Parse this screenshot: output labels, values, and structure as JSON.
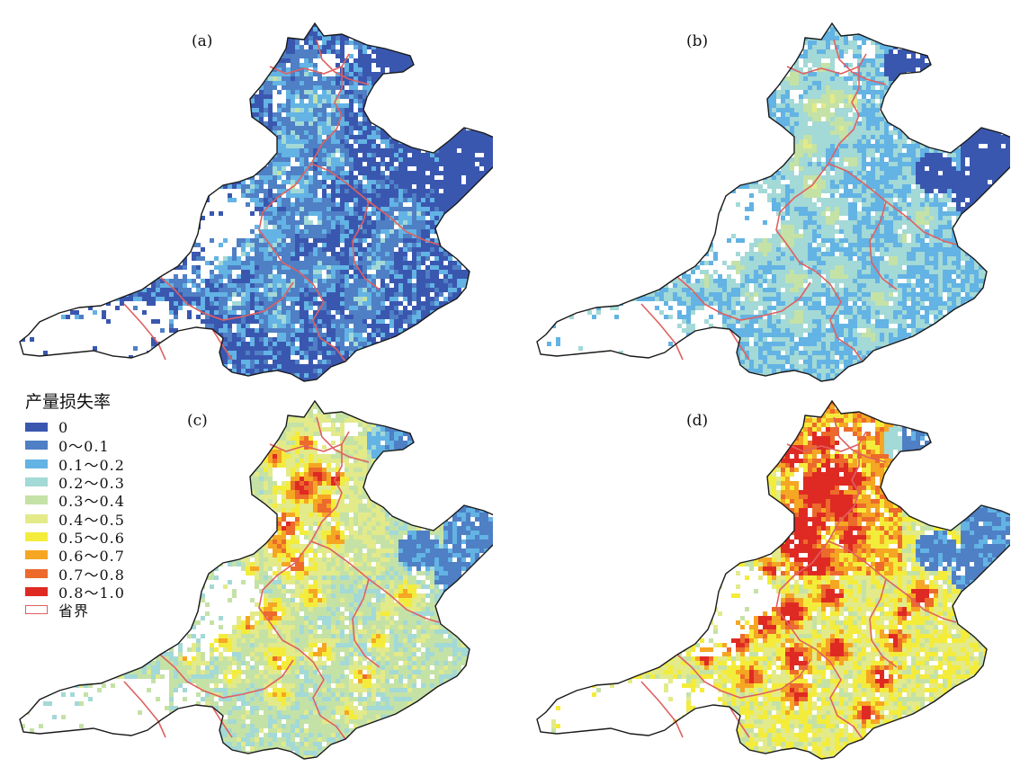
{
  "panels": [
    {
      "label": "(a)",
      "scenario": 0
    },
    {
      "label": "(b)",
      "scenario": 1
    },
    {
      "label": "(c)",
      "scenario": 2
    },
    {
      "label": "(d)",
      "scenario": 3
    }
  ],
  "legend": {
    "title": "产量损失率",
    "classes": [
      {
        "label": "0",
        "color": "#3a57b0"
      },
      {
        "label": "0～0.1",
        "color": "#4f7fc4"
      },
      {
        "label": "0.1～0.2",
        "color": "#63b3e4"
      },
      {
        "label": "0.2～0.3",
        "color": "#a3d9d6"
      },
      {
        "label": "0.3～0.4",
        "color": "#c5e2a6"
      },
      {
        "label": "0.4～0.5",
        "color": "#e3ea8a"
      },
      {
        "label": "0.5～0.6",
        "color": "#f4ec3a"
      },
      {
        "label": "0.6～0.7",
        "color": "#f5a623"
      },
      {
        "label": "0.7～0.8",
        "color": "#ec6a2b"
      },
      {
        "label": "0.8～1.0",
        "color": "#df2a24"
      }
    ],
    "boundary": {
      "label": "省界",
      "color": "#e06060"
    }
  },
  "colors": {
    "outline": "#1a1a1a",
    "province_line": "#e06060"
  }
}
